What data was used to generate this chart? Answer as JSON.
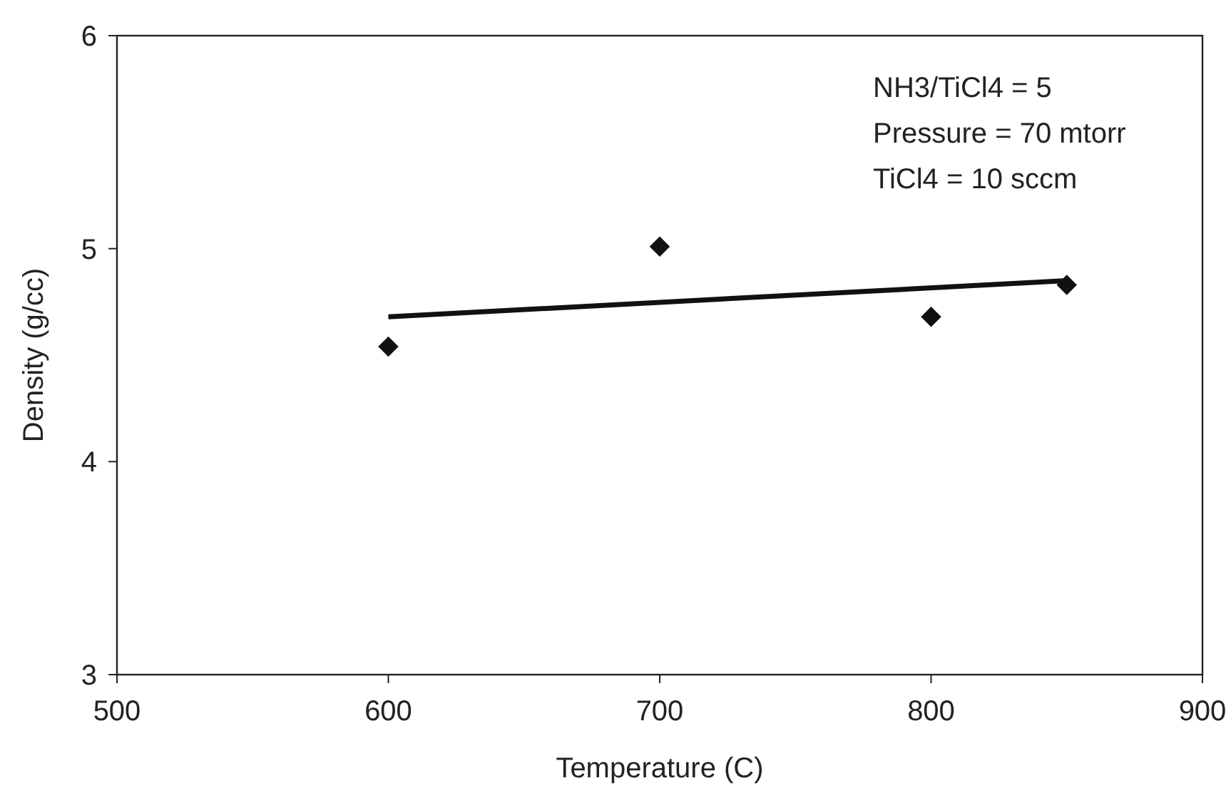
{
  "chart_data": {
    "type": "scatter",
    "xlabel": "Temperature (C)",
    "ylabel": "Density (g/cc)",
    "xlim": [
      500,
      900
    ],
    "xticks": [
      500,
      600,
      700,
      800,
      900
    ],
    "ylim": [
      3,
      6
    ],
    "yticks": [
      3,
      4,
      5,
      6
    ],
    "annotations": [
      "NH3/TiCl4 = 5",
      "Pressure = 70 mtorr",
      "TiCl4 = 10 sccm"
    ],
    "grid": false,
    "series": [
      {
        "color": "#111111",
        "marker": "diamond",
        "x": [
          600,
          700,
          800,
          850
        ],
        "values": [
          4.54,
          5.01,
          4.68,
          4.83
        ]
      },
      {
        "type": "line",
        "marker": "none",
        "color": "#111111",
        "x": [
          600,
          850
        ],
        "values": [
          4.68,
          4.85
        ]
      }
    ]
  }
}
